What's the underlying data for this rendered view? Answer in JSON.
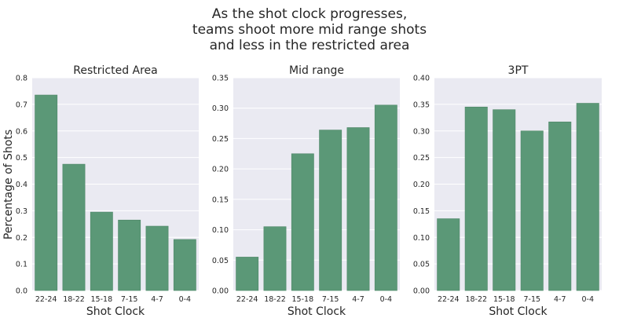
{
  "figure": {
    "title_lines": [
      "As the shot clock progresses,",
      "teams shoot more mid range shots",
      "and less in the restricted area"
    ],
    "ylabel": "Percentage of Shots"
  },
  "colors": {
    "bar": "#5b9877",
    "panel_background": "#eaeaf2",
    "grid": "#ffffff",
    "text": "#262626"
  },
  "chart_data": [
    {
      "type": "bar",
      "title": "Restricted Area",
      "xlabel": "Shot Clock",
      "ylabel": "Percentage of Shots",
      "categories": [
        "22-24",
        "18-22",
        "15-18",
        "7-15",
        "4-7",
        "0-4"
      ],
      "values": [
        0.735,
        0.475,
        0.295,
        0.265,
        0.242,
        0.192
      ],
      "ylim": [
        0,
        0.8
      ],
      "yticks": [
        "0.0",
        "0.1",
        "0.2",
        "0.3",
        "0.4",
        "0.5",
        "0.6",
        "0.7",
        "0.8"
      ],
      "grid": true
    },
    {
      "type": "bar",
      "title": "Mid range",
      "xlabel": "Shot Clock",
      "ylabel": "",
      "categories": [
        "22-24",
        "18-22",
        "15-18",
        "7-15",
        "4-7",
        "0-4"
      ],
      "values": [
        0.055,
        0.105,
        0.225,
        0.264,
        0.268,
        0.305
      ],
      "ylim": [
        0,
        0.35
      ],
      "yticks": [
        "0.00",
        "0.05",
        "0.10",
        "0.15",
        "0.20",
        "0.25",
        "0.30",
        "0.35"
      ],
      "grid": true
    },
    {
      "type": "bar",
      "title": "3PT",
      "xlabel": "Shot Clock",
      "ylabel": "",
      "categories": [
        "22-24",
        "18-22",
        "15-18",
        "7-15",
        "4-7",
        "0-4"
      ],
      "values": [
        0.135,
        0.345,
        0.34,
        0.3,
        0.317,
        0.352
      ],
      "ylim": [
        0,
        0.4
      ],
      "yticks": [
        "0.00",
        "0.05",
        "0.10",
        "0.15",
        "0.20",
        "0.25",
        "0.30",
        "0.35",
        "0.40"
      ],
      "grid": true
    }
  ]
}
